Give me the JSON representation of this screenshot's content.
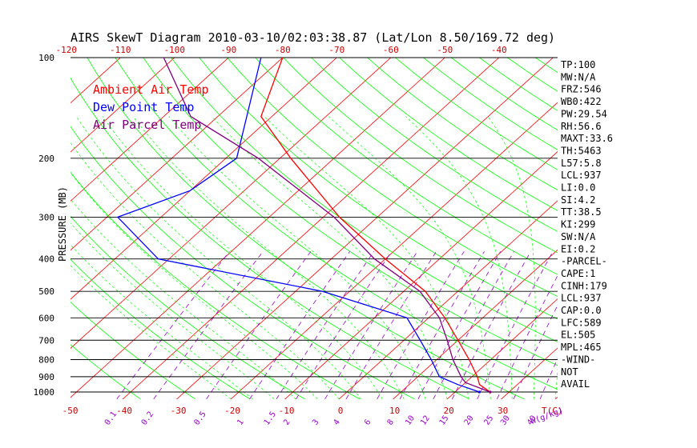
{
  "chart_data": {
    "type": "line",
    "title": "AIRS SkewT Diagram 2010-03-10/02:03:38.87 (Lat/Lon 8.50/169.72 deg)",
    "ylabel": "PRESSURE (MB)",
    "xlabel": "T(C)",
    "mixing_ratio_unit": "W(g/kg)",
    "legend": [
      {
        "label": "Ambient Air Temp",
        "color": "#ff0000"
      },
      {
        "label": "Dew Point Temp",
        "color": "#0000ff"
      },
      {
        "label": "Air Parcel Temp",
        "color": "#800080"
      }
    ],
    "pressure_ticks": [
      100,
      200,
      300,
      400,
      500,
      600,
      700,
      800,
      900,
      1000
    ],
    "pressure_ticks_labels": [
      "100",
      "200",
      "300",
      "400",
      "500",
      "600",
      "700",
      "800",
      "900",
      "1000"
    ],
    "top_temp_ticks": [
      -120,
      -110,
      -100,
      -90,
      -80,
      -70,
      -60,
      -50,
      -40
    ],
    "top_temp_ticks_labels": [
      "-120",
      "-110",
      "-100",
      "-90",
      "-80",
      "-70",
      "-60",
      "-50",
      "-40"
    ],
    "bottom_temp_ticks": [
      -50,
      -40,
      -30,
      -20,
      -10,
      0,
      10,
      20,
      30
    ],
    "bottom_temp_ticks_labels": [
      "-50",
      "-40",
      "-30",
      "-20",
      "-10",
      "0",
      "10",
      "20",
      "30"
    ],
    "mixing_ratio_ticks": [
      0.1,
      0.2,
      0.5,
      1,
      1.5,
      2,
      3,
      4,
      6,
      8,
      10,
      12,
      15,
      20,
      25,
      30,
      40
    ],
    "mixing_ratio_ticks_labels": [
      "0.1",
      "0.2",
      "0.5",
      "1",
      "1.5",
      "2",
      "3",
      "4",
      "6",
      "8",
      "10",
      "12",
      "15",
      "20",
      "25",
      "30",
      "40"
    ],
    "series": [
      {
        "name": "Ambient Air Temp",
        "color": "#ff0000",
        "points": [
          {
            "p": 100,
            "t": -80
          },
          {
            "p": 150,
            "t": -72
          },
          {
            "p": 200,
            "t": -58
          },
          {
            "p": 300,
            "t": -37
          },
          {
            "p": 400,
            "t": -20
          },
          {
            "p": 500,
            "t": -6
          },
          {
            "p": 600,
            "t": 3
          },
          {
            "p": 700,
            "t": 10
          },
          {
            "p": 800,
            "t": 16
          },
          {
            "p": 900,
            "t": 21
          },
          {
            "p": 950,
            "t": 23
          },
          {
            "p": 1000,
            "t": 26.5
          }
        ]
      },
      {
        "name": "Dew Point Temp",
        "color": "#0000ff",
        "points": [
          {
            "p": 100,
            "t": -84
          },
          {
            "p": 200,
            "t": -68
          },
          {
            "p": 250,
            "t": -70
          },
          {
            "p": 300,
            "t": -78
          },
          {
            "p": 400,
            "t": -62
          },
          {
            "p": 500,
            "t": -25
          },
          {
            "p": 600,
            "t": -4
          },
          {
            "p": 700,
            "t": 3
          },
          {
            "p": 800,
            "t": 9
          },
          {
            "p": 900,
            "t": 14
          },
          {
            "p": 950,
            "t": 19
          },
          {
            "p": 1000,
            "t": 24.5
          }
        ]
      },
      {
        "name": "Air Parcel Temp",
        "color": "#800080",
        "points": [
          {
            "p": 100,
            "t": -102
          },
          {
            "p": 150,
            "t": -85
          },
          {
            "p": 200,
            "t": -64
          },
          {
            "p": 300,
            "t": -38
          },
          {
            "p": 400,
            "t": -22
          },
          {
            "p": 500,
            "t": -7
          },
          {
            "p": 600,
            "t": 2
          },
          {
            "p": 700,
            "t": 8
          },
          {
            "p": 800,
            "t": 13
          },
          {
            "p": 900,
            "t": 18
          },
          {
            "p": 937,
            "t": 20
          },
          {
            "p": 1000,
            "t": 26.5
          }
        ]
      }
    ],
    "indices": [
      "TP:100",
      "MW:N/A",
      "FRZ:546",
      "WB0:422",
      "PW:29.54",
      "RH:56.6",
      "MAXT:33.6",
      "TH:5463",
      "L57:5.8",
      "LCL:937",
      "LI:0.0",
      "SI:4.2",
      "TT:38.5",
      "KI:299",
      "SW:N/A",
      "EI:0.2",
      "-PARCEL-",
      "CAPE:1",
      "CINH:179",
      "LCL:937",
      "CAP:0.0",
      "LFC:589",
      "EL:505",
      "MPL:465",
      "-WIND-",
      "NOT",
      "AVAIL"
    ]
  },
  "colors": {
    "isotherm": "#ff0000",
    "dry_adiabat": "#00ff00",
    "moist_adiabat": "#00ff00",
    "mixing_ratio": "#9900cc",
    "isobar": "#000000",
    "temp_labels": "#cc0000",
    "mixing_labels": "#9900cc"
  }
}
